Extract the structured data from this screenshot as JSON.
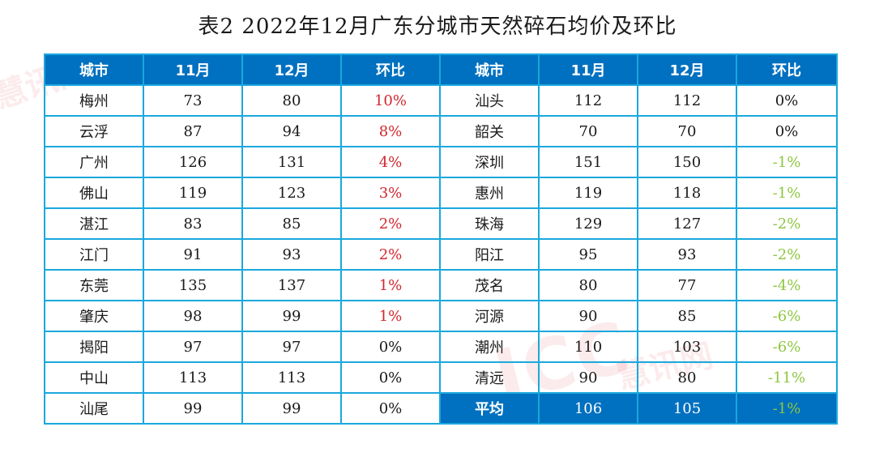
{
  "title": "表2  2022年12月广东分城市天然碎石均价及环比",
  "watermarks": [
    "慧讯网",
    "ICC",
    "慧讯网"
  ],
  "colors": {
    "header_bg": "#0070c0",
    "border": "#1aa8dd",
    "increase": "#d2262e",
    "decrease": "#8dc63f"
  },
  "headers": [
    "城市",
    "11月",
    "12月",
    "环比",
    "城市",
    "11月",
    "12月",
    "环比"
  ],
  "left_rows": [
    {
      "city": "梅州",
      "nov": "73",
      "dec": "80",
      "mom": "10%",
      "trend": "up"
    },
    {
      "city": "云浮",
      "nov": "87",
      "dec": "94",
      "mom": "8%",
      "trend": "up"
    },
    {
      "city": "广州",
      "nov": "126",
      "dec": "131",
      "mom": "4%",
      "trend": "up"
    },
    {
      "city": "佛山",
      "nov": "119",
      "dec": "123",
      "mom": "3%",
      "trend": "up"
    },
    {
      "city": "湛江",
      "nov": "83",
      "dec": "85",
      "mom": "2%",
      "trend": "up"
    },
    {
      "city": "江门",
      "nov": "91",
      "dec": "93",
      "mom": "2%",
      "trend": "up"
    },
    {
      "city": "东莞",
      "nov": "135",
      "dec": "137",
      "mom": "1%",
      "trend": "up"
    },
    {
      "city": "肇庆",
      "nov": "98",
      "dec": "99",
      "mom": "1%",
      "trend": "up"
    },
    {
      "city": "揭阳",
      "nov": "97",
      "dec": "97",
      "mom": "0%",
      "trend": "flat"
    },
    {
      "city": "中山",
      "nov": "113",
      "dec": "113",
      "mom": "0%",
      "trend": "flat"
    },
    {
      "city": "汕尾",
      "nov": "99",
      "dec": "99",
      "mom": "0%",
      "trend": "flat"
    }
  ],
  "right_rows": [
    {
      "city": "汕头",
      "nov": "112",
      "dec": "112",
      "mom": "0%",
      "trend": "flat"
    },
    {
      "city": "韶关",
      "nov": "70",
      "dec": "70",
      "mom": "0%",
      "trend": "flat"
    },
    {
      "city": "深圳",
      "nov": "151",
      "dec": "150",
      "mom": "-1%",
      "trend": "down"
    },
    {
      "city": "惠州",
      "nov": "119",
      "dec": "118",
      "mom": "-1%",
      "trend": "down"
    },
    {
      "city": "珠海",
      "nov": "129",
      "dec": "127",
      "mom": "-2%",
      "trend": "down"
    },
    {
      "city": "阳江",
      "nov": "95",
      "dec": "93",
      "mom": "-2%",
      "trend": "down"
    },
    {
      "city": "茂名",
      "nov": "80",
      "dec": "77",
      "mom": "-4%",
      "trend": "down"
    },
    {
      "city": "河源",
      "nov": "90",
      "dec": "85",
      "mom": "-6%",
      "trend": "down"
    },
    {
      "city": "潮州",
      "nov": "110",
      "dec": "103",
      "mom": "-6%",
      "trend": "down"
    },
    {
      "city": "清远",
      "nov": "90",
      "dec": "80",
      "mom": "-11%",
      "trend": "down"
    }
  ],
  "average": {
    "label": "平均",
    "nov": "106",
    "dec": "105",
    "mom": "-1%",
    "trend": "down"
  }
}
